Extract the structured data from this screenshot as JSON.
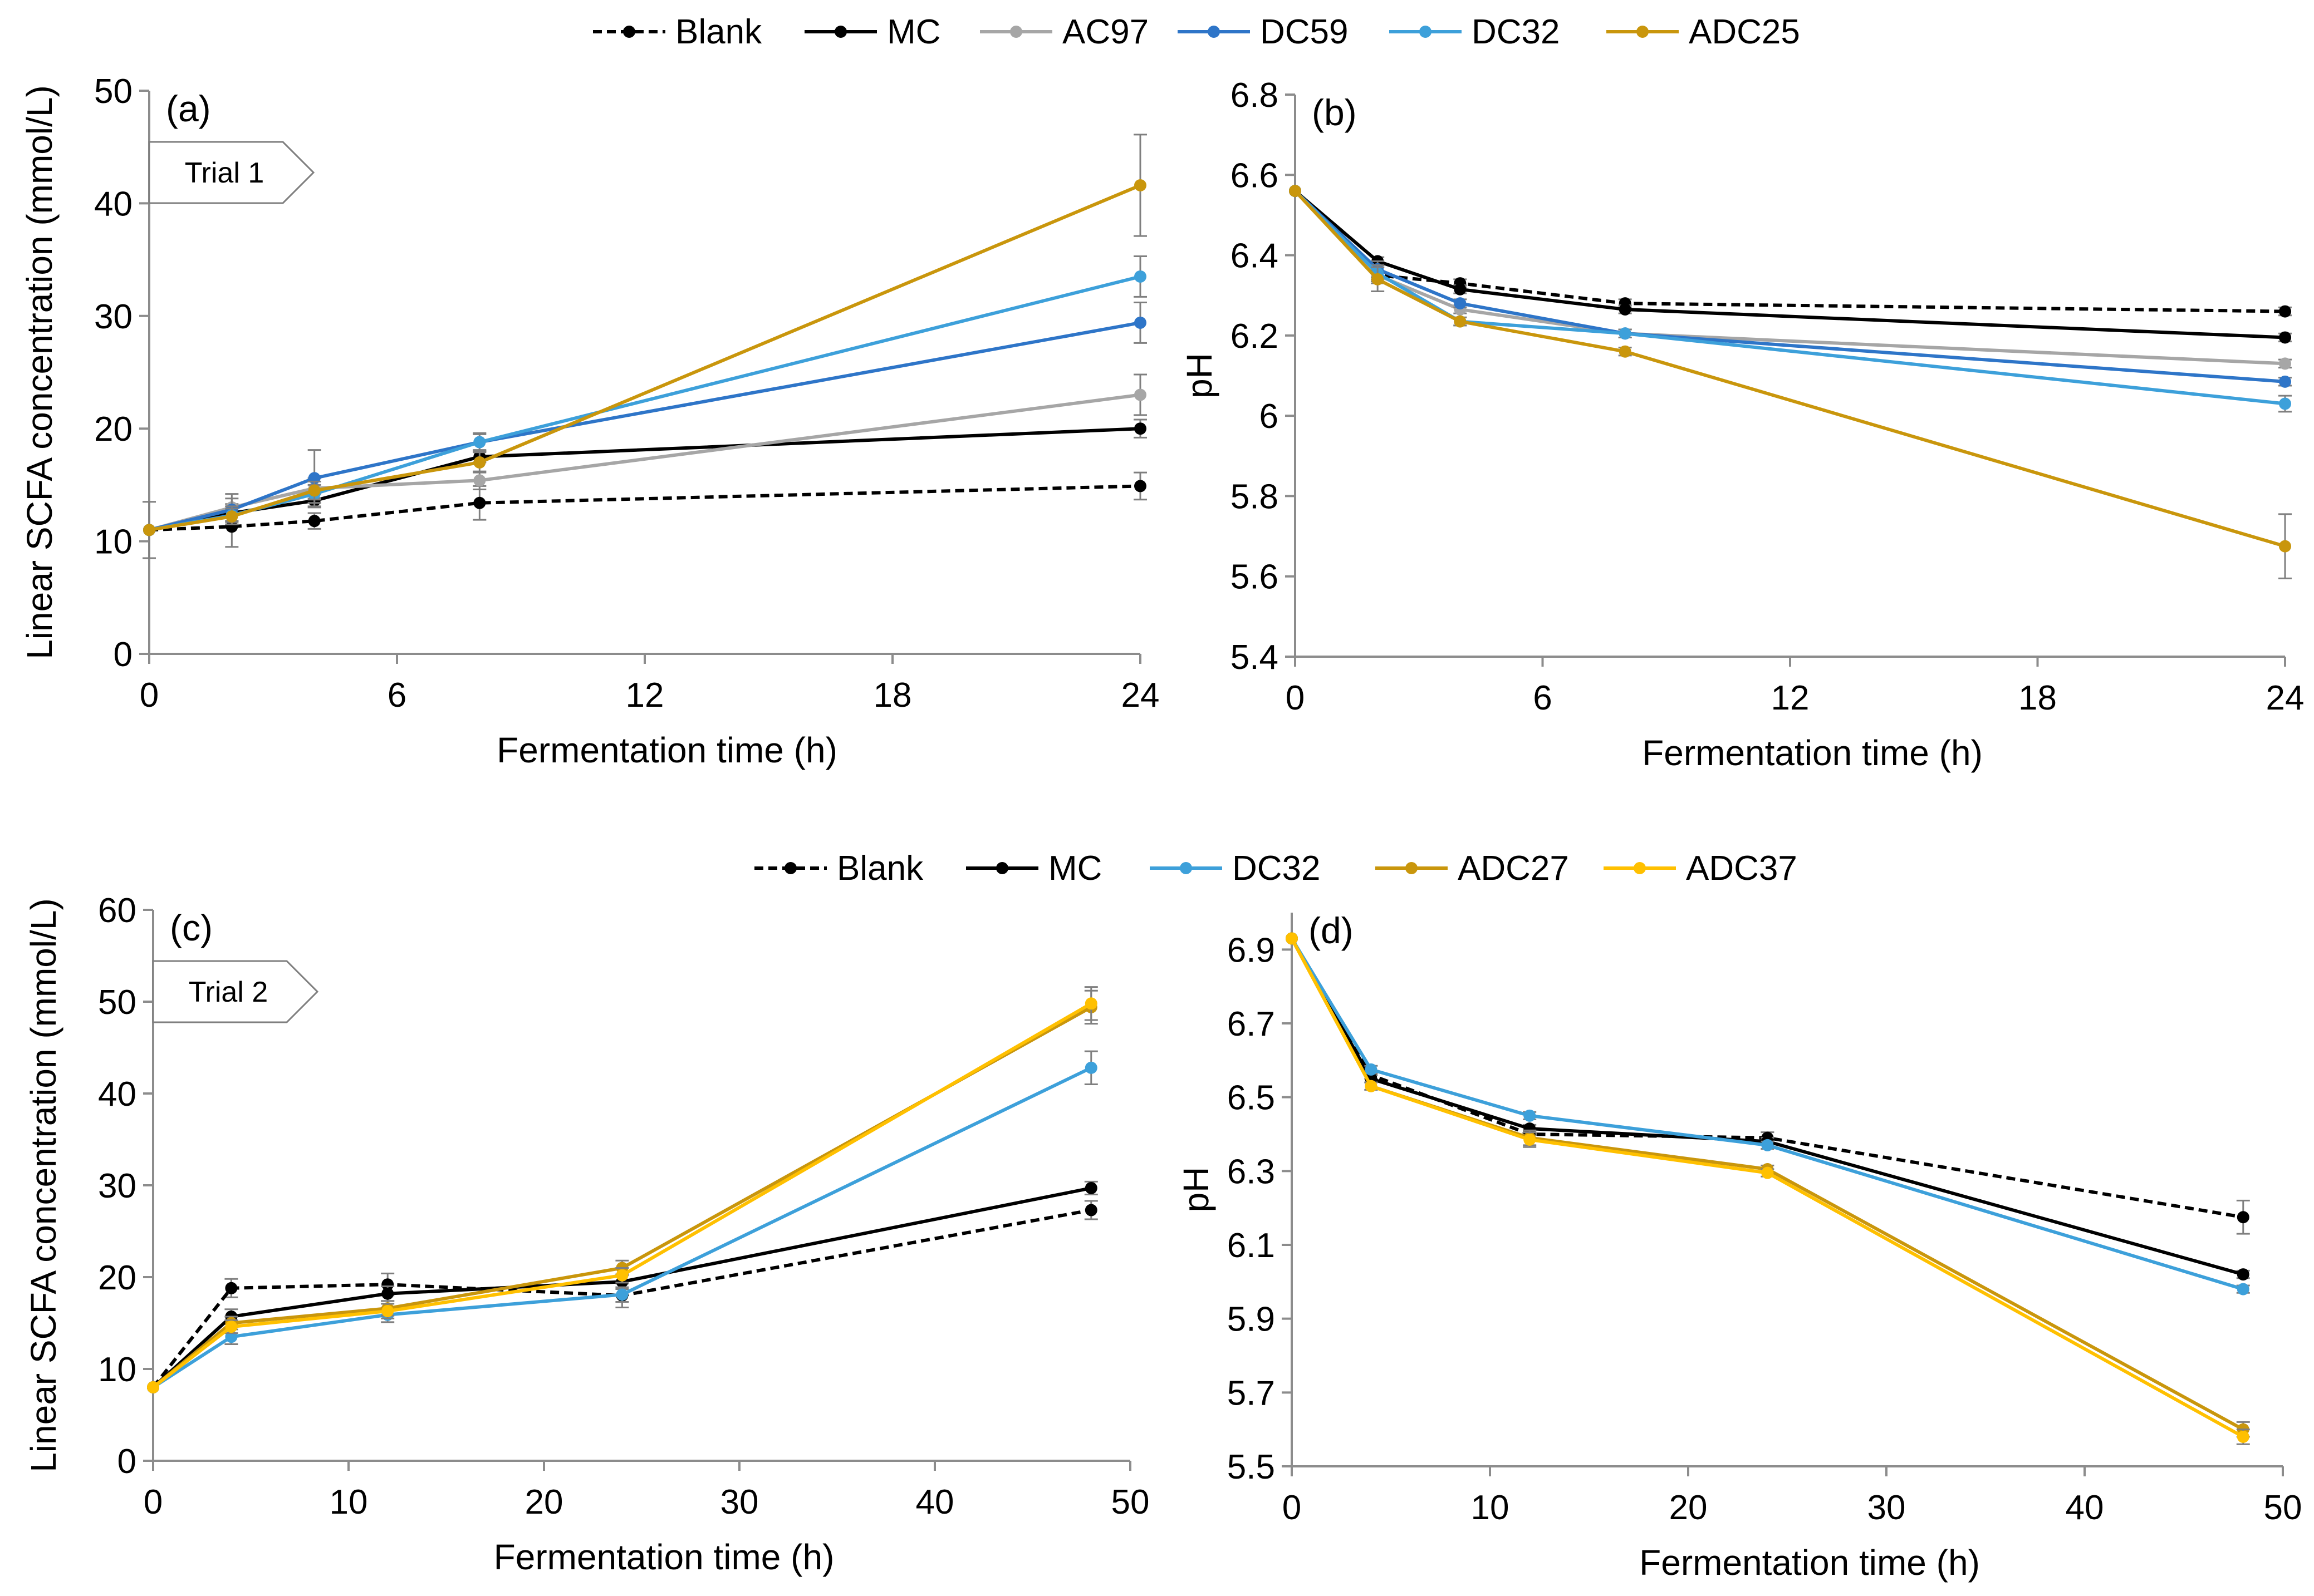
{
  "legends": {
    "top": {
      "items": [
        {
          "name": "Blank",
          "color": "#000000",
          "dash": true
        },
        {
          "name": "MC",
          "color": "#000000",
          "dash": false
        },
        {
          "name": "AC97",
          "color": "#A6A6A6",
          "dash": false
        },
        {
          "name": "DC59",
          "color": "#2E75C8",
          "dash": false
        },
        {
          "name": "DC32",
          "color": "#3DA0DA",
          "dash": false
        },
        {
          "name": "ADC25",
          "color": "#C9960C",
          "dash": false
        }
      ]
    },
    "bottom": {
      "items": [
        {
          "name": "Blank",
          "color": "#000000",
          "dash": true
        },
        {
          "name": "MC",
          "color": "#000000",
          "dash": false
        },
        {
          "name": "DC32",
          "color": "#3DA0DA",
          "dash": false
        },
        {
          "name": "ADC27",
          "color": "#C9960C",
          "dash": false
        },
        {
          "name": "ADC37",
          "color": "#FFC000",
          "dash": false
        }
      ]
    }
  },
  "chart_data": [
    {
      "id": "a",
      "type": "line",
      "panel_label": "(a)",
      "tag": "Trial 1",
      "xlabel": "Fermentation time (h)",
      "ylabel": "Linear SCFA concentration (mmol/L)",
      "xlim": [
        0,
        24
      ],
      "ylim": [
        0,
        50
      ],
      "xticks": [
        0,
        6,
        12,
        18,
        24
      ],
      "yticks": [
        0,
        10,
        20,
        30,
        40,
        50
      ],
      "x": [
        0,
        2,
        4,
        8,
        24
      ],
      "series": [
        {
          "name": "Blank",
          "color": "#000000",
          "dash": true,
          "values": [
            11.0,
            11.3,
            11.8,
            13.4,
            14.9
          ],
          "errors": [
            2.5,
            1.8,
            0.7,
            1.5,
            1.2
          ]
        },
        {
          "name": "MC",
          "color": "#000000",
          "dash": false,
          "values": [
            11.0,
            12.5,
            13.6,
            17.5,
            20.0
          ],
          "errors": [
            0,
            0.8,
            0.6,
            0.5,
            0.8
          ]
        },
        {
          "name": "AC97",
          "color": "#A6A6A6",
          "dash": false,
          "values": [
            11.0,
            13.0,
            14.7,
            15.4,
            23.0
          ],
          "errors": [
            0,
            1.2,
            0.9,
            0.8,
            1.8
          ]
        },
        {
          "name": "DC59",
          "color": "#2E75C8",
          "dash": false,
          "values": [
            11.0,
            12.8,
            15.6,
            18.8,
            29.4
          ],
          "errors": [
            0,
            1.0,
            2.5,
            0.8,
            1.8
          ]
        },
        {
          "name": "DC32",
          "color": "#3DA0DA",
          "dash": false,
          "values": [
            11.0,
            12.3,
            14.2,
            18.8,
            33.5
          ],
          "errors": [
            0,
            0.8,
            0.8,
            0.7,
            1.8
          ]
        },
        {
          "name": "ADC25",
          "color": "#C9960C",
          "dash": false,
          "values": [
            11.0,
            12.2,
            14.5,
            17.0,
            41.6
          ],
          "errors": [
            0,
            0.7,
            0.8,
            0.9,
            4.5
          ]
        }
      ]
    },
    {
      "id": "b",
      "type": "line",
      "panel_label": "(b)",
      "xlabel": "Fermentation time (h)",
      "ylabel": "pH",
      "xlim": [
        0,
        24
      ],
      "ylim": [
        5.4,
        6.8
      ],
      "xticks": [
        0,
        6,
        12,
        18,
        24
      ],
      "yticks": [
        5.4,
        5.6,
        5.8,
        6,
        6.2,
        6.4,
        6.6,
        6.8
      ],
      "x": [
        0,
        2,
        4,
        8,
        24
      ],
      "series": [
        {
          "name": "Blank",
          "color": "#000000",
          "dash": true,
          "values": [
            6.56,
            6.35,
            6.33,
            6.28,
            6.26
          ],
          "errors": [
            0,
            0.01,
            0.01,
            0.01,
            0.01
          ]
        },
        {
          "name": "MC",
          "color": "#000000",
          "dash": false,
          "values": [
            6.56,
            6.385,
            6.315,
            6.265,
            6.195
          ],
          "errors": [
            0,
            0.01,
            0.01,
            0.01,
            0.01
          ]
        },
        {
          "name": "AC97",
          "color": "#A6A6A6",
          "dash": false,
          "values": [
            6.56,
            6.35,
            6.265,
            6.205,
            6.13
          ],
          "errors": [
            0,
            0.02,
            0.01,
            0.01,
            0.01
          ]
        },
        {
          "name": "DC59",
          "color": "#2E75C8",
          "dash": false,
          "values": [
            6.56,
            6.365,
            6.28,
            6.205,
            6.085
          ],
          "errors": [
            0,
            0.02,
            0.01,
            0.01,
            0.01
          ]
        },
        {
          "name": "DC32",
          "color": "#3DA0DA",
          "dash": false,
          "values": [
            6.56,
            6.355,
            6.235,
            6.205,
            6.03
          ],
          "errors": [
            0,
            0.02,
            0.01,
            0.01,
            0.02
          ]
        },
        {
          "name": "ADC25",
          "color": "#C9960C",
          "dash": false,
          "values": [
            6.56,
            6.34,
            6.235,
            6.16,
            5.675
          ],
          "errors": [
            0,
            0.03,
            0.01,
            0.01,
            0.08
          ]
        }
      ]
    },
    {
      "id": "c",
      "type": "line",
      "panel_label": "(c)",
      "tag": "Trial 2",
      "xlabel": "Fermentation time (h)",
      "ylabel": "Linear SCFA concentration (mmol/L)",
      "xlim": [
        0,
        50
      ],
      "ylim": [
        0,
        60
      ],
      "xticks": [
        0,
        10,
        20,
        30,
        40,
        50
      ],
      "yticks": [
        0,
        10,
        20,
        30,
        40,
        50,
        60
      ],
      "x": [
        0,
        4,
        12,
        24,
        48
      ],
      "series": [
        {
          "name": "Blank",
          "color": "#000000",
          "dash": true,
          "values": [
            8.0,
            18.8,
            19.2,
            18.0,
            27.3
          ],
          "errors": [
            0,
            1.0,
            1.2,
            1.3,
            1.0
          ]
        },
        {
          "name": "MC",
          "color": "#000000",
          "dash": false,
          "values": [
            8.0,
            15.7,
            18.2,
            19.5,
            29.7
          ],
          "errors": [
            0,
            0.8,
            0.8,
            0.8,
            0.7
          ]
        },
        {
          "name": "DC32",
          "color": "#3DA0DA",
          "dash": false,
          "values": [
            8.0,
            13.5,
            15.9,
            18.1,
            42.8
          ],
          "errors": [
            0,
            0.8,
            0.8,
            0.8,
            1.8
          ]
        },
        {
          "name": "ADC27",
          "color": "#C9960C",
          "dash": false,
          "values": [
            8.0,
            15.0,
            16.6,
            21.0,
            49.4
          ],
          "errors": [
            0,
            0.7,
            0.8,
            0.8,
            1.8
          ]
        },
        {
          "name": "ADC37",
          "color": "#FFC000",
          "dash": false,
          "values": [
            8.0,
            14.6,
            16.3,
            20.2,
            49.8
          ],
          "errors": [
            0,
            0.7,
            0.8,
            0.8,
            1.8
          ]
        }
      ]
    },
    {
      "id": "d",
      "type": "line",
      "panel_label": "(d)",
      "xlabel": "Fermentation time (h)",
      "ylabel": "pH",
      "xlim": [
        0,
        50
      ],
      "ylim": [
        5.5,
        7.0
      ],
      "xticks": [
        0,
        10,
        20,
        30,
        40,
        50
      ],
      "yticks": [
        5.5,
        5.7,
        5.9,
        6.1,
        6.3,
        6.5,
        6.7,
        6.9
      ],
      "x": [
        0,
        4,
        12,
        24,
        48
      ],
      "series": [
        {
          "name": "Blank",
          "color": "#000000",
          "dash": true,
          "values": [
            6.93,
            6.56,
            6.4,
            6.39,
            6.175
          ],
          "errors": [
            0,
            0.01,
            0.01,
            0.015,
            0.045
          ]
        },
        {
          "name": "MC",
          "color": "#000000",
          "dash": false,
          "values": [
            6.93,
            6.55,
            6.415,
            6.38,
            6.02
          ],
          "errors": [
            0,
            0.01,
            0.01,
            0.01,
            0.01
          ]
        },
        {
          "name": "DC32",
          "color": "#3DA0DA",
          "dash": false,
          "values": [
            6.93,
            6.575,
            6.45,
            6.37,
            5.98
          ],
          "errors": [
            0,
            0.01,
            0.01,
            0.01,
            0.01
          ]
        },
        {
          "name": "ADC27",
          "color": "#C9960C",
          "dash": false,
          "values": [
            6.93,
            6.53,
            6.39,
            6.305,
            5.6
          ],
          "errors": [
            0,
            0.01,
            0.02,
            0.01,
            0.02
          ]
        },
        {
          "name": "ADC37",
          "color": "#FFC000",
          "dash": false,
          "values": [
            6.93,
            6.53,
            6.385,
            6.295,
            5.58
          ],
          "errors": [
            0,
            0.01,
            0.02,
            0.01,
            0.02
          ]
        }
      ]
    }
  ]
}
